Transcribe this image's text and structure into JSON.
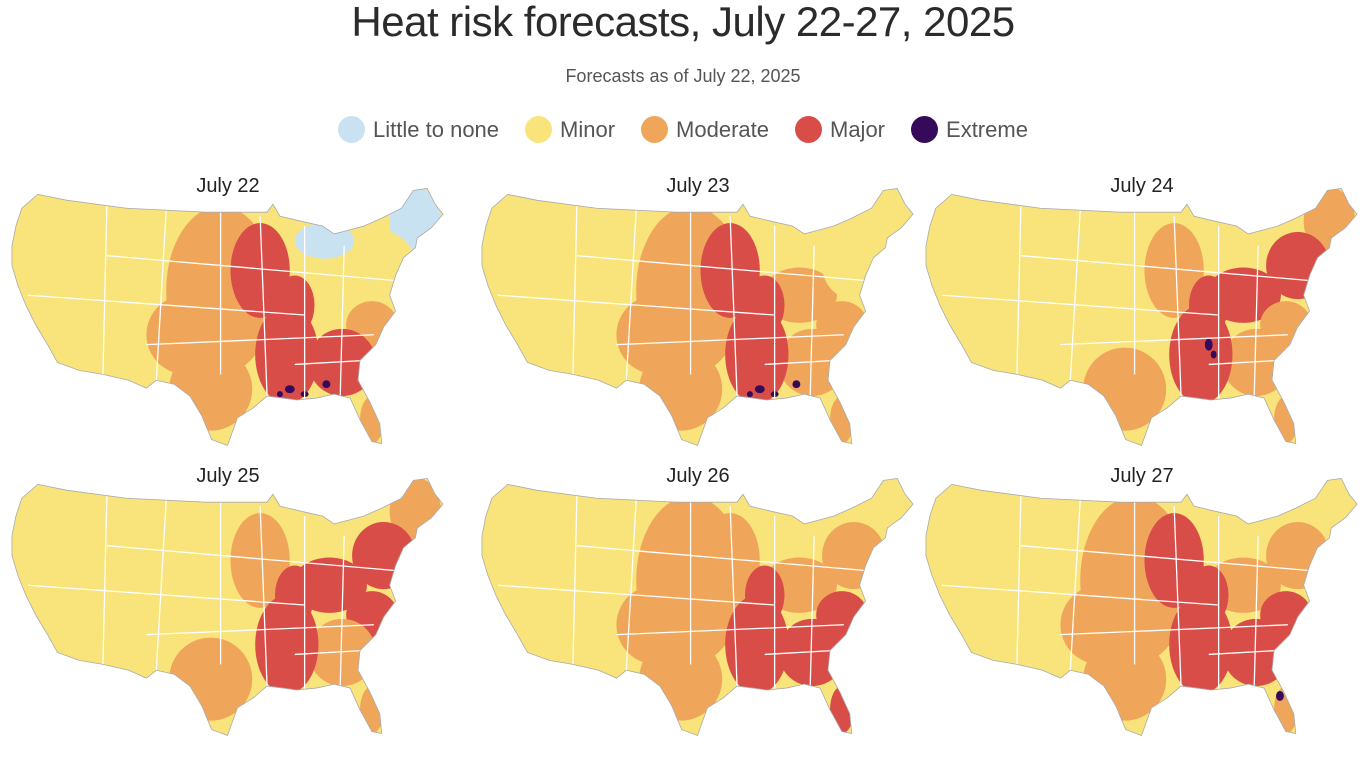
{
  "title": "Heat risk forecasts, July 22-27, 2025",
  "subtitle": "Forecasts as of July 22, 2025",
  "legend": [
    {
      "label": "Little to none",
      "color": "#c9e2f2"
    },
    {
      "label": "Minor",
      "color": "#f8e47a"
    },
    {
      "label": "Moderate",
      "color": "#f0a65a"
    },
    {
      "label": "Major",
      "color": "#d94d48"
    },
    {
      "label": "Extreme",
      "color": "#350a5a"
    }
  ],
  "panels": [
    {
      "title": "July 22",
      "regions": {
        "new_england": "Little to none",
        "great_lakes": "Little to none",
        "plains": "Moderate",
        "upper_midwest": "Major",
        "ohio_valley": "Minor",
        "northeast": "Minor",
        "mid_south": "Major",
        "southeast": "Major",
        "mid_atlantic": "Moderate",
        "texas": "Moderate",
        "florida": "Moderate",
        "gulf_spots": "Extreme"
      }
    },
    {
      "title": "July 23",
      "regions": {
        "plains": "Moderate",
        "upper_midwest": "Major",
        "ohio_valley": "Moderate",
        "northeast": "Minor",
        "mid_south": "Major",
        "southeast": "Moderate",
        "mid_atlantic": "Moderate",
        "texas": "Moderate",
        "florida": "Moderate",
        "gulf_spots": "Extreme"
      }
    },
    {
      "title": "July 24",
      "regions": {
        "upper_midwest": "Moderate",
        "ohio_valley": "Major",
        "northeast": "Major",
        "new_england": "Moderate",
        "mid_south": "Major",
        "southeast": "Moderate",
        "mid_atlantic": "Moderate",
        "texas": "Moderate",
        "florida": "Moderate",
        "tennessee_spots": "Extreme"
      }
    },
    {
      "title": "July 25",
      "regions": {
        "upper_midwest": "Moderate",
        "ohio_valley": "Major",
        "northeast": "Major",
        "new_england": "Moderate",
        "mid_south": "Major",
        "southeast": "Moderate",
        "mid_atlantic": "Major",
        "texas": "Moderate",
        "florida": "Moderate"
      }
    },
    {
      "title": "July 26",
      "regions": {
        "plains": "Moderate",
        "upper_midwest": "Moderate",
        "ohio_valley": "Moderate",
        "northeast": "Moderate",
        "mid_south": "Major",
        "southeast": "Major",
        "mid_atlantic": "Major",
        "texas": "Moderate",
        "florida": "Major"
      }
    },
    {
      "title": "July 27",
      "regions": {
        "plains": "Moderate",
        "upper_midwest": "Major",
        "ohio_valley": "Moderate",
        "northeast": "Moderate",
        "mid_south": "Major",
        "southeast": "Major",
        "mid_atlantic": "Major",
        "texas": "Moderate",
        "florida": "Moderate",
        "florida_spots": "Extreme"
      }
    }
  ]
}
